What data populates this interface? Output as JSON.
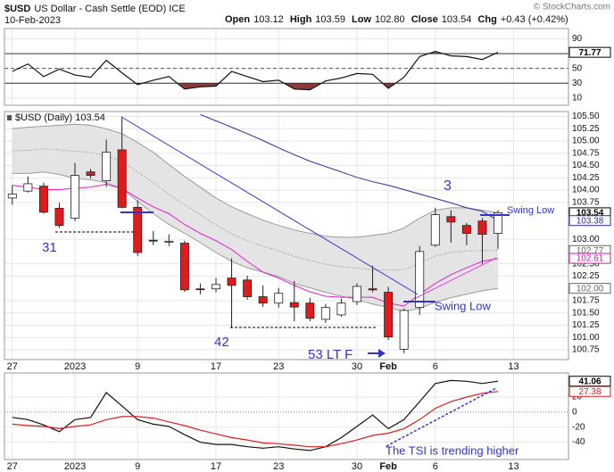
{
  "header": {
    "symbol": "$USD",
    "name": "US Dollar - Cash Settle (EOD) ICE",
    "date": "10-Feb-2023",
    "quote": [
      {
        "label": "Open",
        "value": "103.12"
      },
      {
        "label": "High",
        "value": "103.59"
      },
      {
        "label": "Low",
        "value": "102.80"
      },
      {
        "label": "Close",
        "value": "103.54"
      },
      {
        "label": "Chg",
        "value": "+0.43 (+0.42%)"
      }
    ],
    "watermark": "© StockCharts.com"
  },
  "chart_data": [
    {
      "type": "candlestick",
      "label": "$USD (Daily) 103.54",
      "open": [
        103.84,
        103.98,
        104.08,
        103.63,
        103.43,
        104.37,
        104.19,
        104.82,
        103.65,
        102.98,
        102.95,
        102.92,
        101.99,
        101.99,
        102.21,
        102.17,
        101.83,
        101.7,
        101.71,
        101.7,
        101.37,
        101.46,
        101.73,
        101.99,
        101.92,
        100.76,
        101.61,
        102.88,
        103.46,
        103.28,
        103.37,
        103.12
      ],
      "high": [
        104.1,
        104.28,
        104.15,
        103.74,
        104.55,
        104.43,
        105.03,
        105.5,
        103.79,
        103.17,
        103.1,
        102.97,
        102.1,
        102.21,
        102.61,
        102.26,
        102.06,
        102.01,
        102.15,
        101.81,
        101.68,
        101.79,
        102.1,
        102.46,
        102.03,
        101.59,
        102.86,
        103.64,
        103.59,
        103.33,
        103.43,
        103.59
      ],
      "low": [
        103.7,
        103.95,
        103.52,
        103.23,
        103.37,
        104.24,
        104.06,
        103.63,
        102.66,
        102.88,
        102.86,
        101.93,
        101.88,
        101.92,
        101.19,
        101.77,
        101.62,
        101.61,
        101.33,
        101.33,
        101.3,
        101.42,
        101.66,
        101.92,
        100.95,
        100.68,
        101.46,
        102.84,
        102.93,
        102.88,
        102.5,
        102.8
      ],
      "close": [
        103.92,
        104.13,
        103.55,
        103.28,
        104.3,
        104.3,
        104.77,
        103.65,
        102.73,
        102.97,
        102.96,
        101.97,
        101.98,
        102.08,
        102.06,
        101.83,
        101.7,
        101.9,
        101.62,
        101.39,
        101.61,
        101.7,
        102.04,
        101.97,
        101.01,
        101.55,
        102.75,
        103.5,
        103.35,
        103.12,
        103.1,
        103.54
      ],
      "up_color": "#ffffff",
      "down_color": "#e31a1c",
      "wick_color": "#222222",
      "band_color": "#e4e4e4",
      "overlays": [
        {
          "color": "#9a9a9a",
          "values": [
            105.25,
            105.28,
            105.3,
            105.32,
            105.34,
            105.32,
            105.25,
            105.15,
            104.97,
            104.77,
            104.52,
            104.28,
            104.06,
            103.84,
            103.66,
            103.52,
            103.39,
            103.28,
            103.19,
            103.12,
            103.06,
            103.04,
            103.04,
            103.08,
            103.12,
            103.23,
            103.43,
            103.59,
            103.64,
            103.64,
            103.59,
            103.54
          ]
        },
        {
          "color": "#9a9a9a",
          "values": [
            104.34,
            104.34,
            104.37,
            104.32,
            104.24,
            104.21,
            104.15,
            104.03,
            103.77,
            103.52,
            103.3,
            103.12,
            102.93,
            102.73,
            102.55,
            102.42,
            102.33,
            102.24,
            102.1,
            102.01,
            101.92,
            101.84,
            101.77,
            101.68,
            101.61,
            101.53,
            101.59,
            101.72,
            101.81,
            101.88,
            101.95,
            102.0
          ]
        },
        {
          "color": "#9a9a9a",
          "style": "dotted",
          "values": [
            104.8,
            104.81,
            104.84,
            104.82,
            104.79,
            104.77,
            104.7,
            104.59,
            104.37,
            104.15,
            103.91,
            103.7,
            103.5,
            103.29,
            103.11,
            102.97,
            102.86,
            102.76,
            102.65,
            102.57,
            102.49,
            102.44,
            102.41,
            102.38,
            102.37,
            102.38,
            102.51,
            102.66,
            102.73,
            102.76,
            102.77,
            102.77
          ]
        },
        {
          "color": "#2b2b9c",
          "values": [
            null,
            null,
            null,
            null,
            null,
            null,
            null,
            null,
            null,
            null,
            null,
            null,
            105.54,
            105.41,
            105.28,
            105.15,
            105.01,
            104.86,
            104.72,
            104.59,
            104.48,
            104.37,
            104.26,
            104.17,
            104.1,
            104.01,
            103.92,
            103.83,
            103.74,
            103.64,
            103.57,
            103.38
          ]
        },
        {
          "color": "#e020d0",
          "values": [
            104.1,
            104.06,
            104.01,
            104.01,
            104.04,
            104.06,
            104.12,
            104.03,
            103.84,
            103.66,
            103.52,
            103.3,
            103.12,
            102.97,
            102.79,
            102.55,
            102.33,
            102.21,
            102.06,
            101.93,
            101.84,
            101.82,
            101.82,
            101.82,
            101.7,
            101.64,
            101.88,
            102.1,
            102.28,
            102.42,
            102.55,
            102.61
          ]
        }
      ],
      "xlim": [
        -0.5,
        35.5
      ],
      "xticks": [
        {
          "value": 0,
          "label": "27"
        },
        {
          "value": 4,
          "label": "2023"
        },
        {
          "value": 8,
          "label": "9"
        },
        {
          "value": 13,
          "label": "17"
        },
        {
          "value": 17,
          "label": "23"
        },
        {
          "value": 22,
          "label": "30"
        },
        {
          "value": 24,
          "label": "Feb"
        },
        {
          "value": 27,
          "label": "6"
        },
        {
          "value": 32,
          "label": "13"
        }
      ],
      "ylim": [
        100.55,
        105.6
      ],
      "yticks": [
        {
          "value": 105.5,
          "label": "105.50"
        },
        {
          "value": 105.25,
          "label": "105.25"
        },
        {
          "value": 105,
          "label": "105.00"
        },
        {
          "value": 104.75,
          "label": "104.75"
        },
        {
          "value": 104.5,
          "label": "104.50"
        },
        {
          "value": 104.25,
          "label": "104.25"
        },
        {
          "value": 104,
          "label": "104.00"
        },
        {
          "value": 103.75,
          "label": "103.75"
        },
        {
          "value": 103,
          "label": "103.00"
        },
        {
          "value": 102.5,
          "label": "102.50"
        },
        {
          "value": 102.25,
          "label": "102.25"
        },
        {
          "value": 101.75,
          "label": "101.75"
        },
        {
          "value": 101.5,
          "label": "101.50"
        },
        {
          "value": 101.25,
          "label": "101.25"
        },
        {
          "value": 101,
          "label": "101.00"
        },
        {
          "value": 100.75,
          "label": "100.75"
        }
      ],
      "price_labels": [
        {
          "value": 103.54,
          "label": "103.54",
          "color": "#000000"
        },
        {
          "value": 103.38,
          "label": "103.38",
          "color": "#2b2b9c"
        },
        {
          "value": 102.77,
          "label": "102.77",
          "color": "#666666"
        },
        {
          "value": 102.61,
          "label": "102.61",
          "color": "#c020b0"
        },
        {
          "value": 102.0,
          "label": "102.00",
          "color": "#666666"
        }
      ],
      "annotations": [
        "3",
        "31",
        "42",
        "53 LT F",
        "Swing Low",
        "Swing Low"
      ],
      "annotation_color": "#3333cc",
      "grid": true
    },
    {
      "type": "line",
      "series": [
        {
          "color": "#111111",
          "values": [
            46,
            56,
            39,
            49,
            41,
            38,
            61,
            44,
            28,
            34,
            39,
            22,
            25,
            26,
            46,
            39,
            32,
            34,
            22,
            21,
            33,
            37,
            43,
            42,
            23,
            38,
            66,
            73,
            67,
            66,
            62,
            71.77
          ]
        }
      ],
      "ylim": [
        0,
        104
      ],
      "yticks": [
        90,
        50,
        30,
        10
      ],
      "levels": [
        70,
        30
      ],
      "midline": 50,
      "overbought_color": "#4f9a4f",
      "oversold_color": "#8a3a3a",
      "price_labels": [
        {
          "value": 71.77,
          "label": "71.77",
          "color": "#000000"
        }
      ],
      "grid": true
    },
    {
      "type": "line",
      "series": [
        {
          "color": "#111111",
          "values": [
            -7,
            -10,
            -17,
            -26,
            -10,
            -7,
            26,
            8,
            -10,
            -16,
            -19,
            -30,
            -40,
            -43,
            -43,
            -46,
            -48,
            -46,
            -49,
            -51,
            -46,
            -34,
            -19,
            -4,
            -22,
            -10,
            14,
            38,
            42,
            41,
            38,
            41.06
          ]
        },
        {
          "color": "#e31a1c",
          "values": [
            -16,
            -18,
            -19,
            -22,
            -19,
            -17,
            -10,
            -6,
            -6,
            -8,
            -13,
            -18,
            -24,
            -29,
            -34,
            -37,
            -41,
            -42,
            -44,
            -46,
            -46,
            -42,
            -37,
            -31,
            -28,
            -22,
            -10,
            5,
            14,
            20,
            25,
            27.38
          ]
        }
      ],
      "xlim": [
        -0.5,
        35.5
      ],
      "xticks": [
        {
          "value": 0,
          "label": "27"
        },
        {
          "value": 4,
          "label": "2023"
        },
        {
          "value": 8,
          "label": "9"
        },
        {
          "value": 13,
          "label": "17"
        },
        {
          "value": 17,
          "label": "23"
        },
        {
          "value": 22,
          "label": "30"
        },
        {
          "value": 24,
          "label": "Feb"
        },
        {
          "value": 27,
          "label": "6"
        },
        {
          "value": 32,
          "label": "13"
        }
      ],
      "ylim": [
        -63,
        52
      ],
      "yticks": [
        20,
        0,
        -20,
        -40
      ],
      "zero_line": true,
      "price_labels": [
        {
          "value": 41.06,
          "label": "41.06",
          "color": "#000000"
        },
        {
          "value": 27.38,
          "label": "27.38",
          "color": "#e31a1c"
        }
      ],
      "annotations": [
        "The TSI is trending higher"
      ],
      "annotation_color": "#3333cc",
      "grid": true
    }
  ]
}
